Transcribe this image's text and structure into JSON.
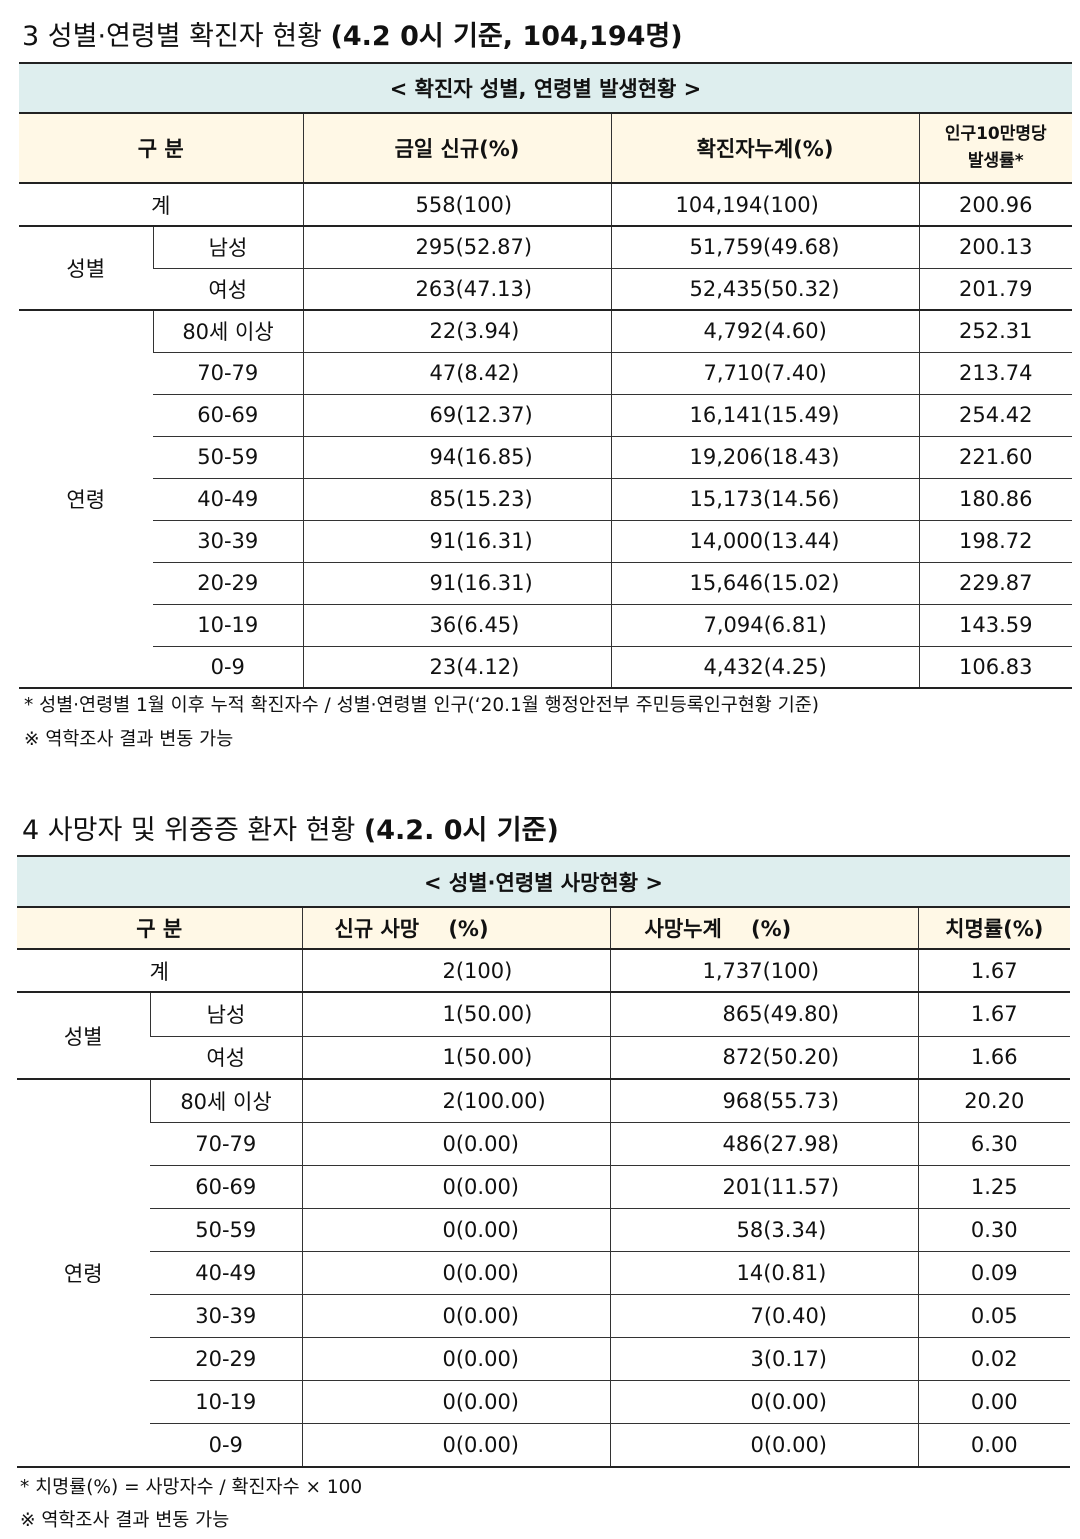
{
  "section3": {
    "heading_prefix": "3  성별·연령별 확진자 현황 ",
    "heading_bold": "(4.2 0시 기준, 104,194명)",
    "table_title": "< 확진자 성별, 연령별 발생현황 >",
    "headers": {
      "category": "구 분",
      "new": "금일 신규(%)",
      "cumulative": "확진자누계(%)",
      "rate_line1": "인구10만명당",
      "rate_line2": "발생률*"
    },
    "total": {
      "label": "계",
      "new": "558(100)",
      "cumulative": "104,194(100)",
      "rate": "200.96"
    },
    "gender_label": "성별",
    "gender": [
      {
        "label": "남성",
        "new": "295(52.87)",
        "cumulative": "51,759(49.68)",
        "rate": "200.13"
      },
      {
        "label": "여성",
        "new": "263(47.13)",
        "cumulative": "52,435(50.32)",
        "rate": "201.79"
      }
    ],
    "age_label": "연령",
    "age": [
      {
        "label": "80세 이상",
        "new": "22(3.94)",
        "cumulative": "4,792(4.60)",
        "rate": "252.31"
      },
      {
        "label": "70-79",
        "new": "47(8.42)",
        "cumulative": "7,710(7.40)",
        "rate": "213.74"
      },
      {
        "label": "60-69",
        "new": "69(12.37)",
        "cumulative": "16,141(15.49)",
        "rate": "254.42"
      },
      {
        "label": "50-59",
        "new": "94(16.85)",
        "cumulative": "19,206(18.43)",
        "rate": "221.60"
      },
      {
        "label": "40-49",
        "new": "85(15.23)",
        "cumulative": "15,173(14.56)",
        "rate": "180.86"
      },
      {
        "label": "30-39",
        "new": "91(16.31)",
        "cumulative": "14,000(13.44)",
        "rate": "198.72"
      },
      {
        "label": "20-29",
        "new": "91(16.31)",
        "cumulative": "15,646(15.02)",
        "rate": "229.87"
      },
      {
        "label": "10-19",
        "new": "36(6.45)",
        "cumulative": "7,094(6.81)",
        "rate": "143.59"
      },
      {
        "label": "0-9",
        "new": "23(4.12)",
        "cumulative": "4,432(4.25)",
        "rate": "106.83"
      }
    ],
    "note1": "* 성별·연령별 1월 이후 누적 확진자수 / 성별·연령별 인구(‘20.1월 행정안전부 주민등록인구현황 기준)",
    "note2": "※ 역학조사 결과 변동 가능"
  },
  "section4": {
    "heading_prefix": "4  사망자 및 위중증 환자 현황 ",
    "heading_bold": "(4.2. 0시 기준)",
    "table_title": "< 성별·연령별 사망현황 >",
    "headers": {
      "category": "구 분",
      "new": "신규 사망    (%)",
      "cumulative": "사망누계    (%)",
      "rate": "치명률(%)"
    },
    "total": {
      "label": "계",
      "new": "2(100)",
      "cumulative": "1,737(100)",
      "rate": "1.67"
    },
    "gender_label": "성별",
    "gender": [
      {
        "label": "남성",
        "new": "1(50.00)",
        "cumulative": "865(49.80)",
        "rate": "1.67"
      },
      {
        "label": "여성",
        "new": "1(50.00)",
        "cumulative": "872(50.20)",
        "rate": "1.66"
      }
    ],
    "age_label": "연령",
    "age": [
      {
        "label": "80세 이상",
        "new": "2(100.00)",
        "cumulative": "968(55.73)",
        "rate": "20.20"
      },
      {
        "label": "70-79",
        "new": "0(0.00)",
        "cumulative": "486(27.98)",
        "rate": "6.30"
      },
      {
        "label": "60-69",
        "new": "0(0.00)",
        "cumulative": "201(11.57)",
        "rate": "1.25"
      },
      {
        "label": "50-59",
        "new": "0(0.00)",
        "cumulative": "58(3.34)",
        "rate": "0.30"
      },
      {
        "label": "40-49",
        "new": "0(0.00)",
        "cumulative": "14(0.81)",
        "rate": "0.09"
      },
      {
        "label": "30-39",
        "new": "0(0.00)",
        "cumulative": "7(0.40)",
        "rate": "0.05"
      },
      {
        "label": "20-29",
        "new": "0(0.00)",
        "cumulative": "3(0.17)",
        "rate": "0.02"
      },
      {
        "label": "10-19",
        "new": "0(0.00)",
        "cumulative": "0(0.00)",
        "rate": "0.00"
      },
      {
        "label": "0-9",
        "new": "0(0.00)",
        "cumulative": "0(0.00)",
        "rate": "0.00"
      }
    ],
    "note1": "* 치명률(%) = 사망자수 / 확진자수 × 100",
    "note2": "※ 역학조사 결과 변동 가능"
  }
}
